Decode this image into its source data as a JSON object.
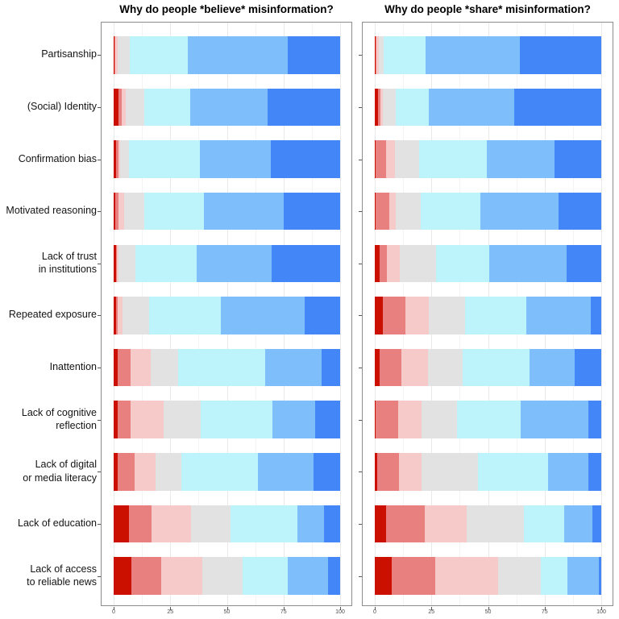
{
  "style": {
    "background": "#ffffff",
    "panel_border": "#8c8c8c",
    "grid_major": "#e9e9e9",
    "grid_minor": "#f4f4f4",
    "tick_color": "#555555",
    "tick_label_color": "#4d4d4d",
    "category_label_color": "#141414",
    "title_color": "#000000"
  },
  "chart_data": {
    "type": "bar",
    "orientation": "horizontal",
    "stacked": true,
    "percent_scale": true,
    "grid": "on",
    "legend": "none",
    "xlabel": "",
    "ylabel": "",
    "xlim": [
      0,
      100
    ],
    "x_ticks": [
      "0",
      "25",
      "50",
      "75",
      "100"
    ],
    "x_minor_gridlines": [
      12.5,
      37.5,
      62.5,
      87.5
    ],
    "segment_names": [
      "dark-red",
      "red",
      "pink",
      "gray",
      "light-cyan",
      "sky-blue",
      "blue"
    ],
    "segment_colors": [
      "#cb1000",
      "#e8807f",
      "#f7caca",
      "#e3e2e2",
      "#bdf4fc",
      "#7ebefa",
      "#4286f7"
    ],
    "categories": [
      "Partisanship",
      "(Social) Identity",
      "Confirmation bias",
      "Motivated reasoning",
      "Lack of trust\nin institutions",
      "Repeated exposure",
      "Inattention",
      "Lack of cognitive\nreflection",
      "Lack of digital\nor media literacy",
      "Lack of education",
      "Lack of access\nto reliable news"
    ],
    "facets": [
      {
        "title": "Why do people *believe* misinformation?",
        "values": [
          [
            0.4,
            0.3,
            1.2,
            5.4,
            25.5,
            44.2,
            23.0
          ],
          [
            2.0,
            1.7,
            1.7,
            8.3,
            20.3,
            34.0,
            32.0
          ],
          [
            1.2,
            0.8,
            1.0,
            3.8,
            31.2,
            31.5,
            30.5
          ],
          [
            0.7,
            1.3,
            2.7,
            9.0,
            26.0,
            35.5,
            24.8
          ],
          [
            0.9,
            0.6,
            0.5,
            7.7,
            27.1,
            32.8,
            30.4
          ],
          [
            1.2,
            0.7,
            2.0,
            11.9,
            31.5,
            36.9,
            15.8
          ],
          [
            1.7,
            5.7,
            8.8,
            12.1,
            38.6,
            25.1,
            8.0
          ],
          [
            1.7,
            5.7,
            14.5,
            16.5,
            31.6,
            19.1,
            10.9
          ],
          [
            1.8,
            7.3,
            9.3,
            11.4,
            33.9,
            24.5,
            11.8
          ],
          [
            6.8,
            9.9,
            17.5,
            17.5,
            29.5,
            11.8,
            7.0
          ],
          [
            8.0,
            13.0,
            18.3,
            17.8,
            19.7,
            18.0,
            5.2
          ]
        ]
      },
      {
        "title": "Why do people *share* misinformation?",
        "values": [
          [
            0.4,
            0.3,
            1.1,
            2.2,
            18.5,
            41.5,
            36.0
          ],
          [
            1.5,
            1.0,
            1.0,
            5.7,
            14.8,
            37.5,
            38.5
          ],
          [
            0.3,
            4.7,
            3.9,
            10.7,
            29.7,
            30.2,
            20.5
          ],
          [
            0.5,
            5.8,
            3.0,
            11.0,
            26.5,
            34.5,
            18.7
          ],
          [
            2.0,
            3.5,
            5.5,
            16.2,
            23.5,
            34.0,
            15.3
          ],
          [
            3.5,
            10.0,
            10.5,
            16.0,
            27.0,
            28.5,
            4.5
          ],
          [
            2.0,
            9.8,
            11.8,
            15.1,
            29.5,
            20.0,
            11.8
          ],
          [
            0.5,
            9.8,
            10.5,
            15.5,
            28.0,
            30.0,
            5.7
          ],
          [
            1.2,
            9.5,
            9.9,
            24.8,
            31.3,
            17.5,
            5.8
          ],
          [
            5.0,
            17.2,
            18.5,
            25.0,
            18.0,
            12.5,
            3.8
          ],
          [
            7.3,
            19.3,
            28.0,
            18.7,
            11.8,
            13.9,
            1.0
          ]
        ]
      }
    ]
  }
}
